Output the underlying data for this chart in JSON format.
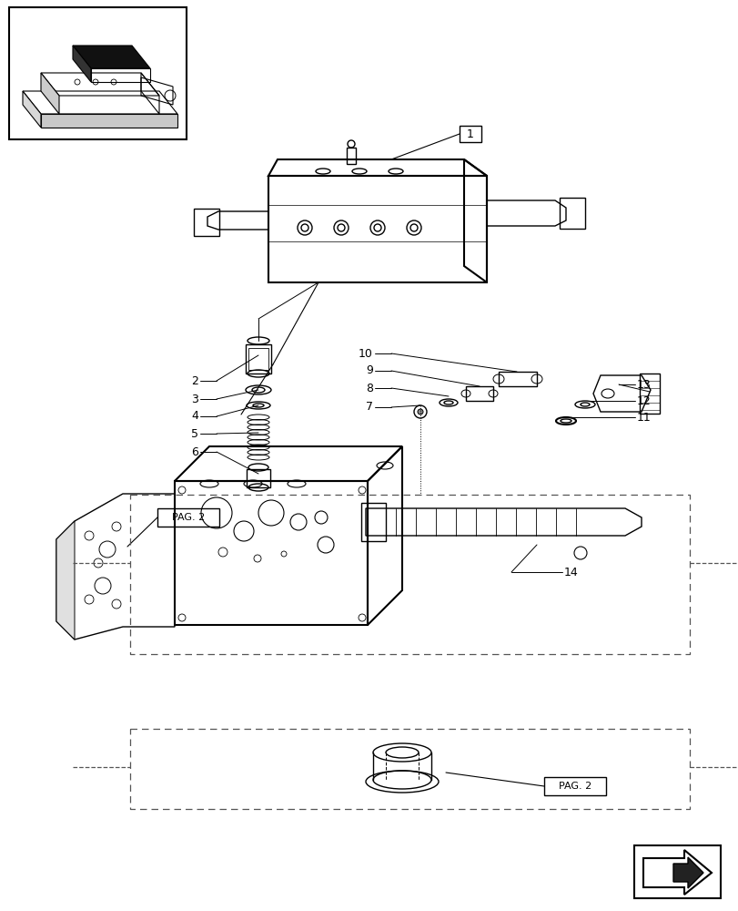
{
  "bg_color": "#ffffff",
  "line_color": "#000000",
  "light_gray": "#aaaaaa",
  "dark_gray": "#555555",
  "title": ""
}
